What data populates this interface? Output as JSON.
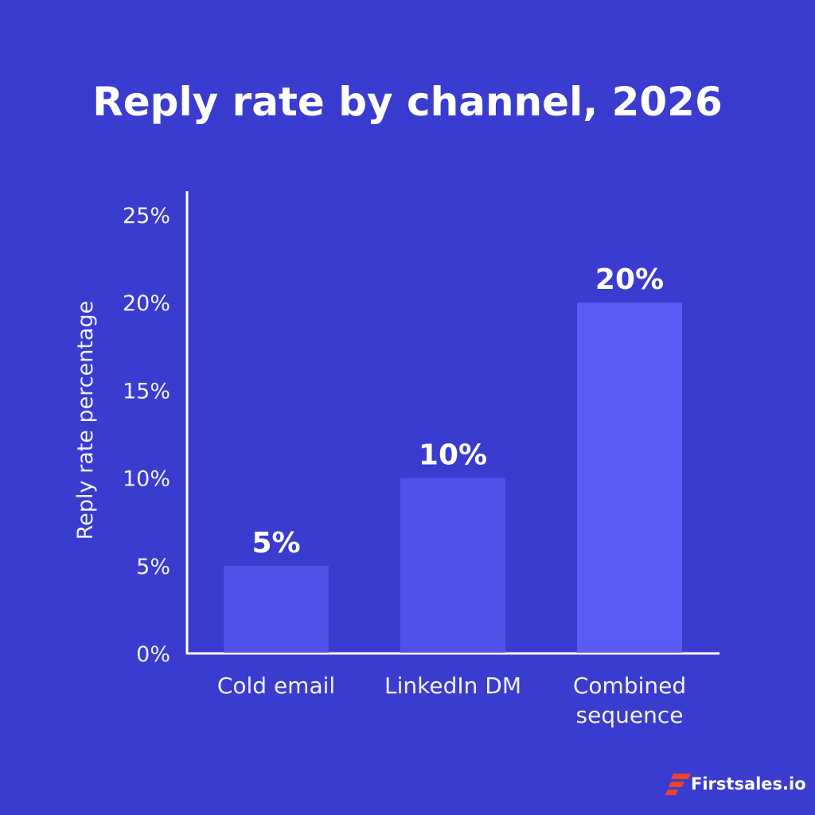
{
  "colors": {
    "background": "#3a3bcf",
    "bar": "#5051e8",
    "bar_highlight": "#5a5cf5",
    "axis": "#ffffff",
    "text": "#ffffff",
    "brand_mark": "#e8452b"
  },
  "brand": {
    "name": "Firstsales.io",
    "icon": "firstsales-logo-icon"
  },
  "chart_data": {
    "type": "bar",
    "title": "Reply rate by channel, 2026",
    "xlabel": "",
    "ylabel": "Reply rate percentage",
    "categories": [
      [
        "Cold email"
      ],
      [
        "LinkedIn DM"
      ],
      [
        "Combined",
        "sequence"
      ]
    ],
    "values": [
      5,
      10,
      20
    ],
    "data_labels": [
      "5%",
      "10%",
      "20%"
    ],
    "ylim": [
      0,
      25
    ],
    "yticks": [
      0,
      5,
      10,
      15,
      20,
      25
    ],
    "ytick_labels": [
      "0%",
      "5%",
      "10%",
      "15%",
      "20%",
      "25%"
    ],
    "grid": false,
    "legend": "none"
  }
}
